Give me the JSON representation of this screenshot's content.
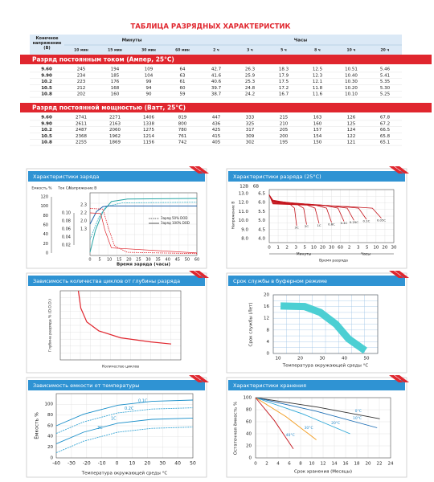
{
  "header": {
    "title": "ТАБЛИЦА РАЗРЯДНЫХ ХАРАКТЕРИСТИК"
  },
  "table": {
    "voltage_header": "Конечное напряжение (В)",
    "minutes_header": "Минуты",
    "hours_header": "Часы",
    "columns": [
      "10 мин",
      "15 мин",
      "30 мин",
      "60 мин",
      "2 ч",
      "3 ч",
      "5 ч",
      "8 ч",
      "10 ч",
      "20 ч"
    ],
    "sections": [
      {
        "title": "Разряд постоянным током (Ампер, 25°C)",
        "rows": [
          [
            "9.60",
            "245",
            "194",
            "109",
            "64",
            "42.7",
            "26.3",
            "18.3",
            "12.5",
            "10.51",
            "5.46"
          ],
          [
            "9.90",
            "234",
            "185",
            "104",
            "63",
            "41.6",
            "25.9",
            "17.9",
            "12.3",
            "10.40",
            "5.41"
          ],
          [
            "10.2",
            "223",
            "176",
            "99",
            "61",
            "40.6",
            "25.3",
            "17.5",
            "12.1",
            "10.30",
            "5.35"
          ],
          [
            "10.5",
            "212",
            "168",
            "94",
            "60",
            "39.7",
            "24.8",
            "17.2",
            "11.8",
            "10.20",
            "5.30"
          ],
          [
            "10.8",
            "202",
            "160",
            "90",
            "59",
            "38.7",
            "24.2",
            "16.7",
            "11.6",
            "10.10",
            "5.25"
          ]
        ]
      },
      {
        "title": "Разряд постоянной мощностью (Ватт, 25°C)",
        "rows": [
          [
            "9.60",
            "2741",
            "2271",
            "1406",
            "819",
            "447",
            "333",
            "215",
            "163",
            "126",
            "67.8"
          ],
          [
            "9.90",
            "2611",
            "2163",
            "1338",
            "800",
            "436",
            "325",
            "210",
            "160",
            "125",
            "67.2"
          ],
          [
            "10.2",
            "2487",
            "2060",
            "1275",
            "780",
            "425",
            "317",
            "205",
            "157",
            "124",
            "66.5"
          ],
          [
            "10.5",
            "2368",
            "1962",
            "1214",
            "761",
            "415",
            "309",
            "200",
            "154",
            "122",
            "65.8"
          ],
          [
            "10.8",
            "2255",
            "1869",
            "1156",
            "742",
            "405",
            "302",
            "195",
            "150",
            "121",
            "65.1"
          ]
        ]
      }
    ]
  },
  "panels": [
    {
      "title": "Характеристики заряда",
      "capacity_label": "Емкость %",
      "current_label": "Ток CA",
      "voltage_label": "Напряжение В",
      "capacity_ticks": [
        "120",
        "100",
        "80",
        "60",
        "40",
        "20",
        "0"
      ],
      "current_ticks": [
        "0.10",
        "0.08",
        "0.06",
        "0.04",
        "0.02"
      ],
      "voltage_ticks": [
        "2.3",
        "2.2",
        "2.0",
        "1.3"
      ],
      "xticks": [
        "0",
        "5",
        "10",
        "15",
        "20",
        "25",
        "30",
        "35",
        "40",
        "45",
        "50",
        "60"
      ],
      "xlabel": "Время заряда (часы)",
      "legend": [
        "Заряд 50% DOD",
        "Заряд 100% DOD"
      ]
    },
    {
      "title": "Характеристики разряда  (25°C)",
      "ylabel": "Напряжение В",
      "yheaders": [
        "12В",
        "6В"
      ],
      "yticks_12": [
        "13.0",
        "12.0",
        "11.0",
        "10.0",
        "9.0",
        "8.0"
      ],
      "yticks_6": [
        "6.5",
        "6.0",
        "5.5",
        "5.0",
        "4.5",
        "4.0"
      ],
      "xticks": [
        "0",
        "1",
        "2",
        "3",
        "5",
        "10",
        "20",
        "30",
        "60",
        "2",
        "3",
        "5",
        "10",
        "20",
        "30"
      ],
      "minutes_label": "Минуты",
      "hours_label": "Часы",
      "xlabel": "Время разряда",
      "curve_labels": [
        "3C",
        "2C",
        "1C",
        "0.6C",
        "0.4C",
        "0.25C",
        "0.1C",
        "0.05C"
      ]
    },
    {
      "title": "Зависимость количества циклов от глубины разряда",
      "ylabel": "Глубина разряда % (D.O.D.)",
      "xlabel": "Количество циклов"
    },
    {
      "title": "Срок службы в буферном режиме",
      "ylabel": "Срок службы (Лет)",
      "yticks": [
        "20",
        "16",
        "12",
        "8",
        "4",
        "0"
      ],
      "xticks": [
        "10",
        "20",
        "30",
        "40",
        "50"
      ],
      "xlabel": "Температура окружающей среды °C"
    },
    {
      "title": "Зависимость емкости от температуры",
      "ylabel": "Ёмкость %",
      "yticks": [
        "100",
        "80",
        "60",
        "40",
        "20",
        "0"
      ],
      "xticks": [
        "-40",
        "-30",
        "-20",
        "-10",
        "0",
        "10",
        "20",
        "30",
        "40",
        "50"
      ],
      "xlabel": "Температура окружающей среды °C",
      "curve_labels": [
        "0.1C",
        "0.2C",
        "1C",
        "3C"
      ]
    },
    {
      "title": "Характеристики хранения",
      "ylabel": "Остаточная ёмкость %",
      "yticks": [
        "100",
        "80",
        "60",
        "40",
        "20",
        "0"
      ],
      "xticks": [
        "0",
        "2",
        "4",
        "6",
        "8",
        "10",
        "12",
        "14",
        "16",
        "18",
        "20",
        "22",
        "24"
      ],
      "xlabel": "Срок хранения (Месяцы)",
      "curve_labels": [
        "0°C",
        "10°C",
        "20°C",
        "30°C",
        "40°C"
      ]
    }
  ]
}
